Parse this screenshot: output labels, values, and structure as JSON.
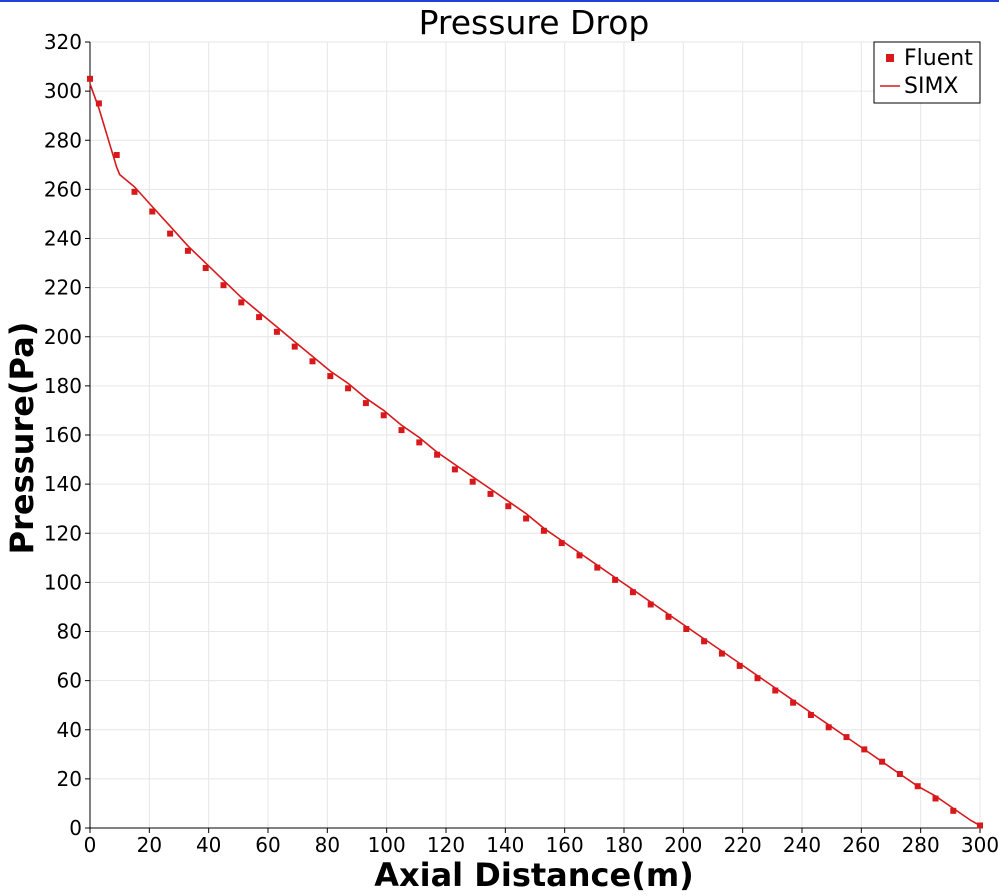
{
  "chart_data": {
    "type": "line",
    "title": "Pressure Drop",
    "xlabel": "Axial Distance(m)",
    "ylabel": "Pressure(Pa)",
    "xlim": [
      0,
      300
    ],
    "ylim": [
      0,
      320
    ],
    "xticks": [
      "0",
      "20",
      "40",
      "60",
      "80",
      "100",
      "120",
      "140",
      "160",
      "180",
      "200",
      "220",
      "240",
      "260",
      "280",
      "300"
    ],
    "yticks": [
      "0",
      "20",
      "40",
      "60",
      "80",
      "100",
      "120",
      "140",
      "160",
      "180",
      "200",
      "220",
      "240",
      "260",
      "280",
      "300",
      "320"
    ],
    "grid": true,
    "legend_position": "top-right",
    "colors": {
      "series": "#d7191c",
      "grid": "#e6e6e6",
      "axis": "#000000"
    },
    "series": [
      {
        "name": "Fluent",
        "style": "markers",
        "x": [
          0,
          3,
          9,
          15,
          21,
          27,
          33,
          39,
          45,
          51,
          57,
          63,
          69,
          75,
          81,
          87,
          93,
          99,
          105,
          111,
          117,
          123,
          129,
          135,
          141,
          147,
          153,
          159,
          165,
          171,
          177,
          183,
          189,
          195,
          201,
          207,
          213,
          219,
          225,
          231,
          237,
          243,
          249,
          255,
          261,
          267,
          273,
          279,
          285,
          291,
          300
        ],
        "y": [
          305,
          295,
          274,
          259,
          251,
          242,
          235,
          228,
          221,
          214,
          208,
          202,
          196,
          190,
          184,
          179,
          173,
          168,
          162,
          157,
          152,
          146,
          141,
          136,
          131,
          126,
          121,
          116,
          111,
          106,
          101,
          96,
          91,
          86,
          81,
          76,
          71,
          66,
          61,
          56,
          51,
          46,
          41,
          37,
          32,
          27,
          22,
          17,
          12,
          7,
          1
        ]
      },
      {
        "name": "SIMX",
        "style": "line",
        "x": [
          0,
          3,
          6,
          9,
          10,
          15,
          21,
          27,
          33,
          39,
          45,
          51,
          57,
          63,
          69,
          75,
          81,
          87,
          93,
          99,
          105,
          111,
          117,
          123,
          129,
          135,
          141,
          147,
          153,
          159,
          165,
          171,
          177,
          183,
          189,
          195,
          201,
          207,
          213,
          219,
          225,
          231,
          237,
          243,
          249,
          255,
          261,
          267,
          273,
          279,
          285,
          291,
          297,
          300
        ],
        "y": [
          303,
          293,
          281,
          269,
          266,
          261,
          253,
          245,
          237,
          230,
          223,
          216,
          210,
          204,
          198,
          192,
          186,
          181,
          175,
          170,
          164,
          159,
          153,
          148,
          143,
          138,
          133,
          128,
          122,
          117,
          112,
          107,
          102,
          97,
          92,
          87,
          82,
          77,
          72,
          67,
          62,
          57,
          52,
          47,
          42,
          37,
          32,
          27,
          22,
          17,
          13,
          8,
          3,
          1
        ]
      }
    ]
  }
}
